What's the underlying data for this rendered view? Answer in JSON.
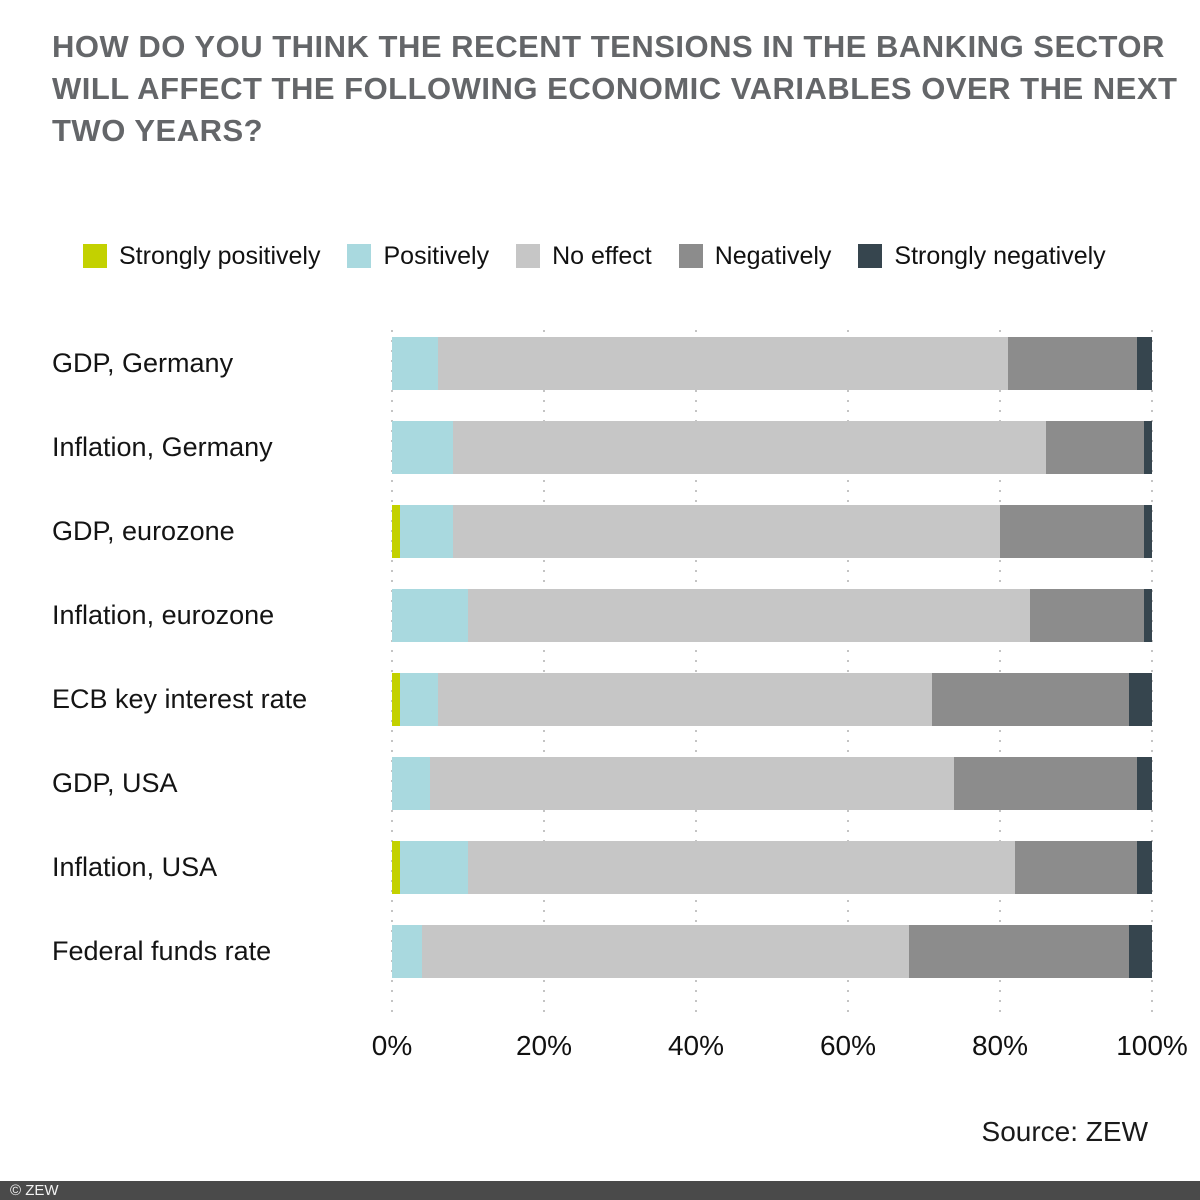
{
  "title": {
    "line1": "HOW DO YOU THINK THE RECENT TENSIONS IN THE BANKING SECTOR",
    "line2": "WILL AFFECT THE FOLLOWING ECONOMIC VARIABLES OVER THE NEXT",
    "line3": "TWO YEARS?"
  },
  "colors": {
    "strongly_positively": "#c3d100",
    "positively": "#a9d9df",
    "no_effect": "#c6c6c6",
    "negatively": "#8c8c8c",
    "strongly_negatively": "#36454e",
    "title_text": "#646669",
    "gridline": "#c4c4c4",
    "footer_bg": "#4a4a4a"
  },
  "chart_data": {
    "type": "bar",
    "orientation": "horizontal",
    "stacked": true,
    "units": "percent",
    "title": "HOW DO YOU THINK THE RECENT TENSIONS IN THE BANKING SECTOR WILL AFFECT THE FOLLOWING ECONOMIC VARIABLES OVER THE NEXT TWO YEARS?",
    "categories": [
      "GDP, Germany",
      "Inflation, Germany",
      "GDP, eurozone",
      "Inflation, eurozone",
      "ECB key interest rate",
      "GDP, USA",
      "Inflation, USA",
      "Federal funds rate"
    ],
    "series": [
      {
        "name": "Strongly positively",
        "color": "#c3d100",
        "values": [
          0,
          0,
          1,
          0,
          1,
          0,
          1,
          0
        ]
      },
      {
        "name": "Positively",
        "color": "#a9d9df",
        "values": [
          6,
          8,
          7,
          10,
          5,
          5,
          9,
          4
        ]
      },
      {
        "name": "No effect",
        "color": "#c6c6c6",
        "values": [
          75,
          78,
          72,
          74,
          65,
          69,
          72,
          64
        ]
      },
      {
        "name": "Negatively",
        "color": "#8c8c8c",
        "values": [
          17,
          13,
          19,
          15,
          26,
          24,
          16,
          29
        ]
      },
      {
        "name": "Strongly negatively",
        "color": "#36454e",
        "values": [
          2,
          1,
          1,
          1,
          3,
          2,
          2,
          3
        ]
      }
    ],
    "x_ticks": [
      "0%",
      "20%",
      "40%",
      "60%",
      "80%",
      "100%"
    ],
    "xlim": [
      0,
      100
    ],
    "grid": "dotted-vertical",
    "legend_position": "top"
  },
  "source": "Source: ZEW",
  "footer": "© ZEW"
}
